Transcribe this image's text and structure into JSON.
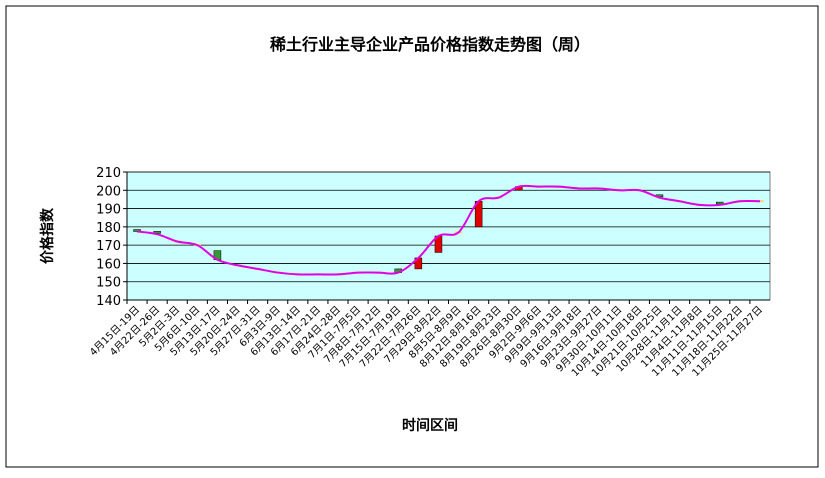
{
  "chart_data": {
    "type": "candlestick",
    "title": "稀土行业主导企业产品价格指数走势图（周）",
    "y_label": "价格指数",
    "x_label": "时间区间",
    "categories": [
      "4月15日-19日",
      "4月22日-26日",
      "5月2日-3日",
      "5月6日-10日",
      "5月13日-17日",
      "5月20日-24日",
      "5月27日-31日",
      "6月3日-9日",
      "6月13日-14日",
      "6月17日-21日",
      "6月24日-28日",
      "7月1日-7月5日",
      "7月8日-7月12日",
      "7月15日-7月19日",
      "7月22日-7月26日",
      "7月29日-8月2日",
      "8月5日-8月9日",
      "8月12日-8月16日",
      "8月19日-8月23日",
      "8月26日-8月30日",
      "9月2日-9月6日",
      "9月9日-9月13日",
      "9月16日-9月18日",
      "9月23日-9月27日",
      "9月30日-10月11日",
      "10月14日-10月18日",
      "10月21日-10月25日",
      "10月28日-11月1日",
      "11月4日-11月8日",
      "11月11日-11月15日",
      "11月18日-11月22日",
      "11月25日-11月27日"
    ],
    "open": [
      178,
      177,
      172,
      170,
      167,
      159,
      157,
      155,
      154,
      154,
      154,
      155,
      155,
      157,
      157,
      166,
      177,
      180,
      196,
      200,
      202,
      202,
      201,
      201,
      200,
      200,
      197,
      194,
      192,
      193,
      194,
      194
    ],
    "close": [
      177.5,
      176,
      172,
      170,
      162,
      159,
      157,
      155,
      154,
      154,
      154,
      155,
      155,
      155,
      163,
      175,
      177,
      194,
      196,
      202,
      202,
      202,
      201,
      201,
      200,
      200,
      196,
      194,
      192,
      192,
      194,
      194
    ],
    "line_color": "#e000e0",
    "ylim": [
      140,
      210
    ],
    "yticks": [
      140,
      150,
      160,
      170,
      180,
      190,
      200,
      210
    ],
    "grid": true
  }
}
